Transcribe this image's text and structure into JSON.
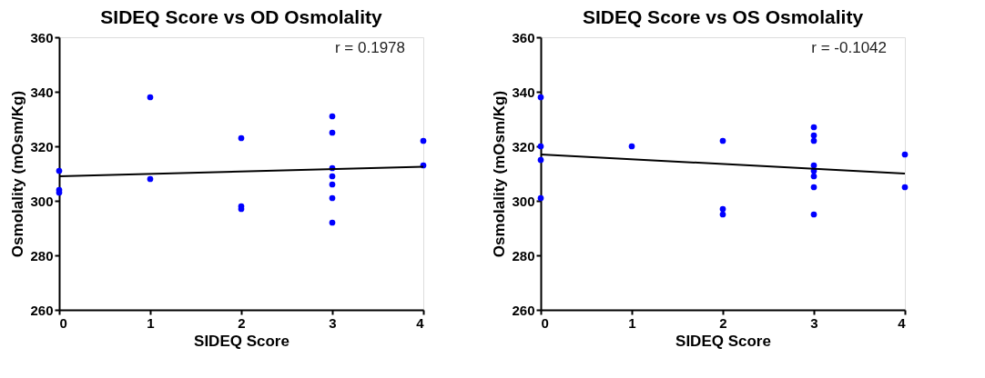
{
  "chart_data": [
    {
      "type": "scatter",
      "title": "SIDEQ Score vs OD Osmolality",
      "xlabel": "SIDEQ Score",
      "ylabel": "Osmolality (mOsm/Kg)",
      "annotations": [
        "r = 0.1978"
      ],
      "xlim": [
        0,
        4
      ],
      "xticks": [
        0,
        1,
        2,
        3,
        4
      ],
      "ylim": [
        260,
        360
      ],
      "yticks": [
        260,
        280,
        300,
        320,
        340,
        360
      ],
      "grid": false,
      "series": [
        {
          "marker": "circle",
          "color": "#0000ff",
          "x": [
            0,
            0,
            0,
            1,
            1,
            2,
            2,
            2,
            3,
            3,
            3,
            3,
            3,
            3,
            3,
            4,
            4
          ],
          "values": [
            311,
            304,
            303,
            338,
            308,
            323,
            298,
            297,
            331,
            325,
            312,
            309,
            306,
            301,
            292,
            322,
            313
          ]
        },
        {
          "type": "line",
          "color": "#000000",
          "x": [
            0,
            4
          ],
          "values": [
            309,
            312.5
          ]
        }
      ]
    },
    {
      "type": "scatter",
      "title": "SIDEQ Score vs OS Osmolality",
      "xlabel": "SIDEQ Score",
      "ylabel": "Osmolality (mOsm/Kg)",
      "annotations": [
        "r = -0.1042"
      ],
      "xlim": [
        0,
        4
      ],
      "xticks": [
        0,
        1,
        2,
        3,
        4
      ],
      "ylim": [
        260,
        360
      ],
      "yticks": [
        260,
        280,
        300,
        320,
        340,
        360
      ],
      "grid": false,
      "series": [
        {
          "marker": "circle",
          "color": "#0000ff",
          "x": [
            0,
            0,
            0,
            0,
            1,
            2,
            2,
            2,
            3,
            3,
            3,
            3,
            3,
            3,
            3,
            3,
            4,
            4
          ],
          "values": [
            338,
            320,
            315,
            301,
            320,
            322,
            297,
            295,
            327,
            324,
            322,
            313,
            311,
            309,
            305,
            295,
            317,
            305
          ]
        },
        {
          "type": "line",
          "color": "#000000",
          "x": [
            0,
            4
          ],
          "values": [
            317,
            310
          ]
        }
      ]
    }
  ]
}
